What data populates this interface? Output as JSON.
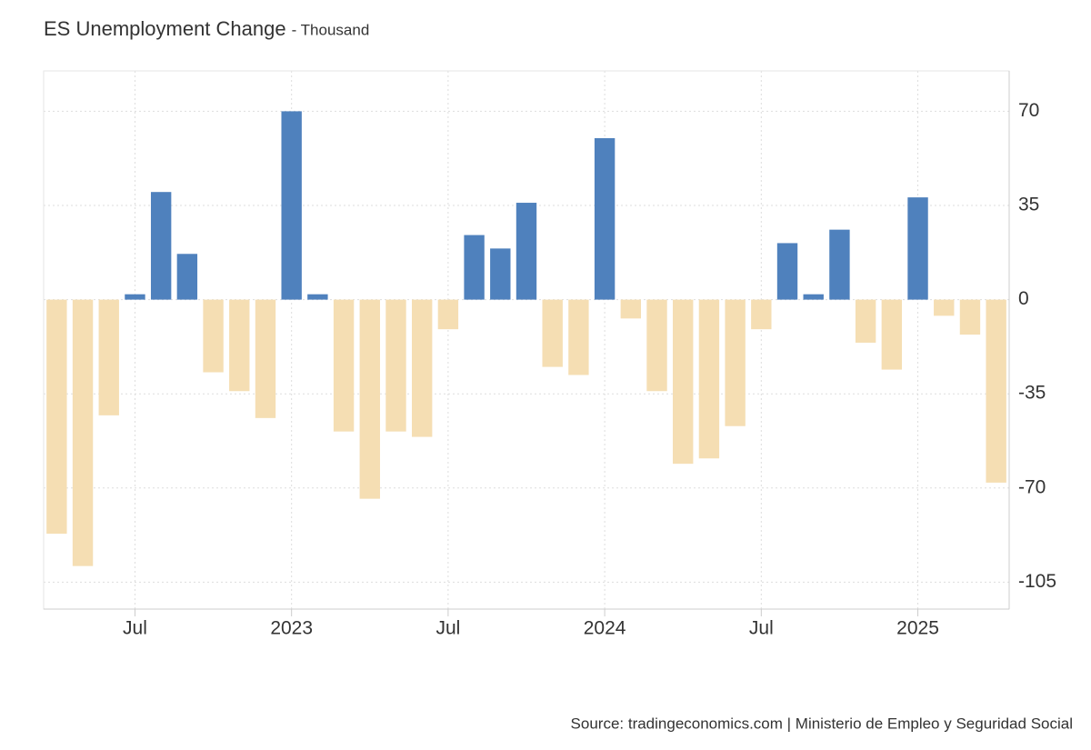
{
  "chart_data": {
    "type": "bar",
    "title": "ES Unemployment Change",
    "subtitle": "- Thousand",
    "source": "Source: tradingeconomics.com | Ministerio de Empleo y Seguridad Social",
    "categories": [
      null,
      null,
      null,
      "Jul",
      null,
      null,
      null,
      null,
      null,
      "2023",
      null,
      null,
      null,
      null,
      null,
      "Jul",
      null,
      null,
      null,
      null,
      null,
      "2024",
      null,
      null,
      null,
      null,
      null,
      "Jul",
      null,
      null,
      null,
      null,
      null,
      "2025",
      null,
      null,
      null
    ],
    "values": [
      -87,
      -99,
      -43,
      2,
      40,
      17,
      -27,
      -34,
      -44,
      70,
      2,
      -49,
      -74,
      -49,
      -51,
      -11,
      24,
      19,
      36,
      -25,
      -28,
      60,
      -7,
      -34,
      -61,
      -59,
      -47,
      -11,
      21,
      2,
      26,
      -16,
      -26,
      38,
      -6,
      -13,
      -68
    ],
    "positive_color": "#4f81bd",
    "negative_color": "#f5deb3",
    "ylim": [
      -115,
      85
    ],
    "yticks": [
      -105,
      -70,
      -35,
      0,
      35,
      70
    ],
    "grid": true
  }
}
